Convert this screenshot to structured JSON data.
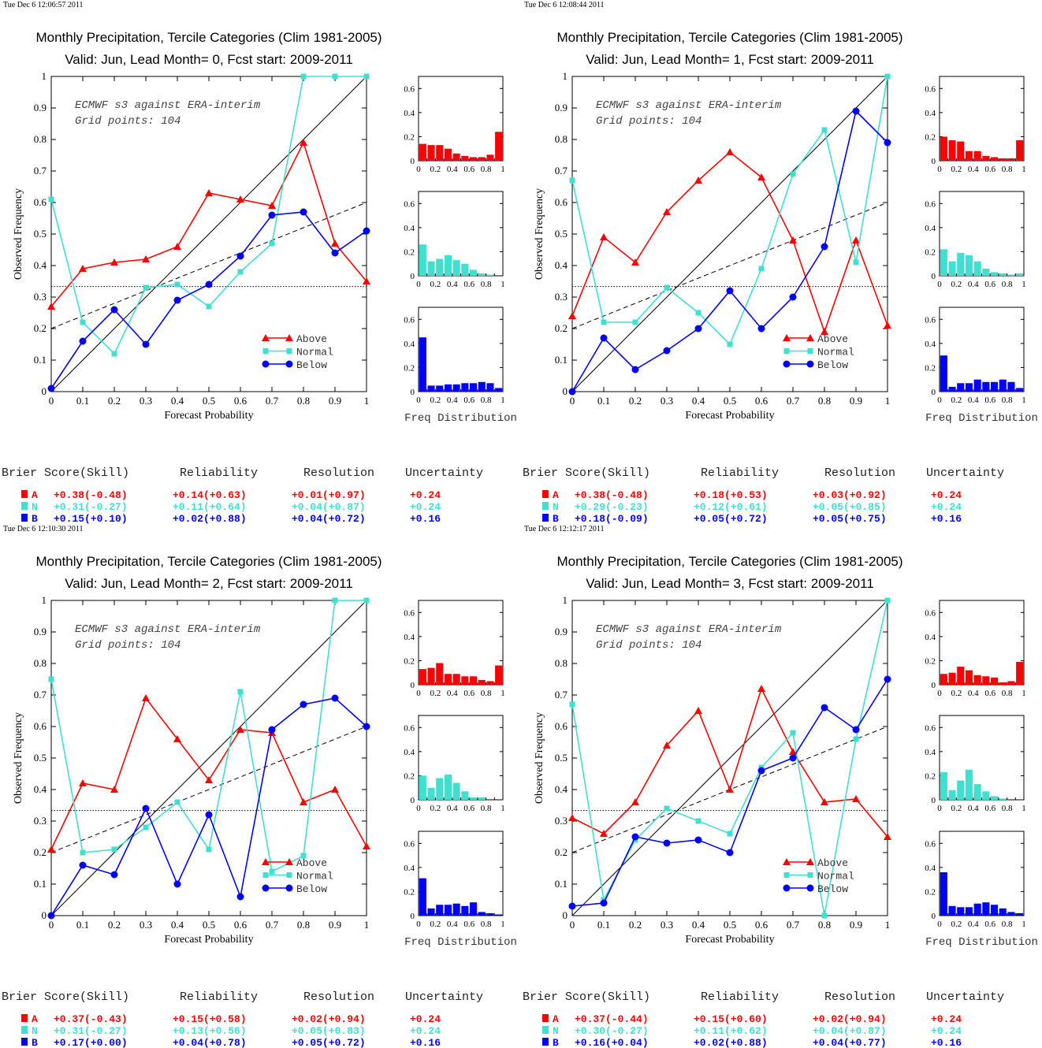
{
  "colors": {
    "above": "#ff0000",
    "normal": "#40e0d0",
    "below": "#0000ff",
    "axis": "#000000"
  },
  "chart_data": [
    {
      "type": "line",
      "timestamp": "Tue Dec  6 12:06:57 2011",
      "title": "Monthly Precipitation, Tercile Categories (Clim 1981-2005)",
      "subtitle": "Valid: Jun, Lead Month= 0, Fcst start: 2009-2011",
      "annotation": [
        "ECMWF s3 against ERA-interim",
        "Grid points:  104"
      ],
      "xlabel": "Forecast Probability",
      "ylabel": "Observed Frequency",
      "xlim": [
        0,
        1
      ],
      "ylim": [
        0,
        1
      ],
      "x": [
        0,
        0.1,
        0.2,
        0.3,
        0.4,
        0.5,
        0.6,
        0.7,
        0.8,
        0.9,
        1
      ],
      "series": [
        {
          "name": "Above",
          "values": [
            0.27,
            0.39,
            0.41,
            0.42,
            0.46,
            0.63,
            0.61,
            0.59,
            0.79,
            0.47,
            0.35
          ]
        },
        {
          "name": "Normal",
          "values": [
            0.61,
            0.22,
            0.12,
            0.33,
            0.34,
            0.27,
            0.38,
            0.47,
            1.0,
            1.0,
            1.0
          ]
        },
        {
          "name": "Below",
          "values": [
            0.01,
            0.16,
            0.26,
            0.15,
            0.29,
            0.34,
            0.43,
            0.56,
            0.57,
            0.44,
            0.51
          ]
        }
      ],
      "freq_distribution": {
        "xlabel": "Freq Distribution",
        "ylim": [
          0,
          0.7
        ],
        "above": [
          0.14,
          0.13,
          0.13,
          0.1,
          0.06,
          0.04,
          0.03,
          0.03,
          0.05,
          0.24
        ],
        "normal": [
          0.26,
          0.12,
          0.14,
          0.17,
          0.13,
          0.1,
          0.05,
          0.02,
          0.01,
          0.0
        ],
        "below": [
          0.45,
          0.05,
          0.05,
          0.06,
          0.06,
          0.07,
          0.07,
          0.08,
          0.07,
          0.03
        ]
      },
      "scores": {
        "headers": [
          "Brier Score(Skill)",
          "Reliability",
          "Resolution",
          "Uncertainty"
        ],
        "rows": [
          {
            "label": "A",
            "brier": "+0.38(-0.48)",
            "reliability": "+0.14(+0.63)",
            "resolution": "+0.01(+0.97)",
            "uncertainty": "+0.24"
          },
          {
            "label": "N",
            "brier": "+0.31(-0.27)",
            "reliability": "+0.11(+0.64)",
            "resolution": "+0.04(+0.87)",
            "uncertainty": "+0.24"
          },
          {
            "label": "B",
            "brier": "+0.15(+0.10)",
            "reliability": "+0.02(+0.88)",
            "resolution": "+0.04(+0.72)",
            "uncertainty": "+0.16"
          }
        ]
      }
    },
    {
      "type": "line",
      "timestamp": "Tue Dec  6 12:08:44 2011",
      "title": "Monthly Precipitation, Tercile Categories (Clim 1981-2005)",
      "subtitle": "Valid: Jun, Lead Month= 1, Fcst start: 2009-2011",
      "annotation": [
        "ECMWF s3 against ERA-interim",
        "Grid points:  104"
      ],
      "xlabel": "Forecast Probability",
      "ylabel": "Observed Frequency",
      "xlim": [
        0,
        1
      ],
      "ylim": [
        0,
        1
      ],
      "x": [
        0,
        0.1,
        0.2,
        0.3,
        0.4,
        0.5,
        0.6,
        0.7,
        0.8,
        0.9,
        1
      ],
      "series": [
        {
          "name": "Above",
          "values": [
            0.24,
            0.49,
            0.41,
            0.57,
            0.67,
            0.76,
            0.68,
            0.48,
            0.19,
            0.48,
            0.21
          ]
        },
        {
          "name": "Normal",
          "values": [
            0.67,
            0.22,
            0.22,
            0.33,
            0.25,
            0.15,
            0.39,
            0.69,
            0.83,
            0.41,
            1.0
          ]
        },
        {
          "name": "Below",
          "values": [
            0.0,
            0.17,
            0.07,
            0.13,
            0.2,
            0.32,
            0.2,
            0.3,
            0.46,
            0.89,
            0.79
          ]
        }
      ],
      "freq_distribution": {
        "xlabel": "Freq Distribution",
        "ylim": [
          0,
          0.7
        ],
        "above": [
          0.2,
          0.17,
          0.16,
          0.08,
          0.08,
          0.04,
          0.03,
          0.02,
          0.02,
          0.17
        ],
        "normal": [
          0.22,
          0.12,
          0.19,
          0.17,
          0.12,
          0.06,
          0.03,
          0.02,
          0.01,
          0.02
        ],
        "below": [
          0.3,
          0.04,
          0.07,
          0.07,
          0.1,
          0.08,
          0.08,
          0.1,
          0.08,
          0.03
        ]
      },
      "scores": {
        "headers": [
          "Brier Score(Skill)",
          "Reliability",
          "Resolution",
          "Uncertainty"
        ],
        "rows": [
          {
            "label": "A",
            "brier": "+0.38(-0.48)",
            "reliability": "+0.18(+0.53)",
            "resolution": "+0.03(+0.92)",
            "uncertainty": "+0.24"
          },
          {
            "label": "N",
            "brier": "+0.29(-0.23)",
            "reliability": "+0.12(+0.61)",
            "resolution": "+0.05(+0.85)",
            "uncertainty": "+0.24"
          },
          {
            "label": "B",
            "brier": "+0.18(-0.09)",
            "reliability": "+0.05(+0.72)",
            "resolution": "+0.05(+0.75)",
            "uncertainty": "+0.16"
          }
        ]
      }
    },
    {
      "type": "line",
      "timestamp": "Tue Dec  6 12:10:30 2011",
      "title": "Monthly Precipitation, Tercile Categories (Clim 1981-2005)",
      "subtitle": "Valid: Jun, Lead Month= 2, Fcst start: 2009-2011",
      "annotation": [
        "ECMWF s3 against ERA-interim",
        "Grid points:  104"
      ],
      "xlabel": "Forecast Probability",
      "ylabel": "Observed Frequency",
      "xlim": [
        0,
        1
      ],
      "ylim": [
        0,
        1
      ],
      "x": [
        0,
        0.1,
        0.2,
        0.3,
        0.4,
        0.5,
        0.6,
        0.7,
        0.8,
        0.9,
        1
      ],
      "series": [
        {
          "name": "Above",
          "values": [
            0.21,
            0.42,
            0.4,
            0.69,
            0.56,
            0.43,
            0.59,
            0.58,
            0.36,
            0.4,
            0.22
          ]
        },
        {
          "name": "Normal",
          "values": [
            0.75,
            0.2,
            0.21,
            0.28,
            0.36,
            0.21,
            0.71,
            0.14,
            0.19,
            1.0,
            1.0
          ]
        },
        {
          "name": "Below",
          "values": [
            0.0,
            0.16,
            0.13,
            0.34,
            0.1,
            0.32,
            0.06,
            0.59,
            0.67,
            0.69,
            0.6
          ]
        }
      ],
      "freq_distribution": {
        "xlabel": "Freq Distribution",
        "ylim": [
          0,
          0.7
        ],
        "above": [
          0.13,
          0.14,
          0.18,
          0.09,
          0.09,
          0.07,
          0.07,
          0.04,
          0.03,
          0.16
        ],
        "normal": [
          0.2,
          0.1,
          0.18,
          0.21,
          0.14,
          0.07,
          0.02,
          0.02,
          0.0,
          0.0
        ],
        "below": [
          0.31,
          0.06,
          0.09,
          0.09,
          0.1,
          0.08,
          0.11,
          0.03,
          0.02,
          0.01
        ]
      },
      "scores": {
        "headers": [
          "Brier Score(Skill)",
          "Reliability",
          "Resolution",
          "Uncertainty"
        ],
        "rows": [
          {
            "label": "A",
            "brier": "+0.37(-0.43)",
            "reliability": "+0.15(+0.58)",
            "resolution": "+0.02(+0.94)",
            "uncertainty": "+0.24"
          },
          {
            "label": "N",
            "brier": "+0.31(-0.27)",
            "reliability": "+0.13(+0.56)",
            "resolution": "+0.05(+0.83)",
            "uncertainty": "+0.24"
          },
          {
            "label": "B",
            "brier": "+0.17(+0.00)",
            "reliability": "+0.04(+0.78)",
            "resolution": "+0.05(+0.72)",
            "uncertainty": "+0.16"
          }
        ]
      }
    },
    {
      "type": "line",
      "timestamp": "Tue Dec  6 12:12:17 2011",
      "title": "Monthly Precipitation, Tercile Categories (Clim 1981-2005)",
      "subtitle": "Valid: Jun, Lead Month= 3, Fcst start: 2009-2011",
      "annotation": [
        "ECMWF s3 against ERA-interim",
        "Grid points:  104"
      ],
      "xlabel": "Forecast Probability",
      "ylabel": "Observed Frequency",
      "xlim": [
        0,
        1
      ],
      "ylim": [
        0,
        1
      ],
      "x": [
        0,
        0.1,
        0.2,
        0.3,
        0.4,
        0.5,
        0.6,
        0.7,
        0.8,
        0.9,
        1
      ],
      "series": [
        {
          "name": "Above",
          "values": [
            0.31,
            0.26,
            0.36,
            0.54,
            0.65,
            0.4,
            0.72,
            0.52,
            0.36,
            0.37,
            0.25
          ]
        },
        {
          "name": "Normal",
          "values": [
            0.67,
            0.05,
            0.24,
            0.34,
            0.3,
            0.26,
            0.47,
            0.58,
            0.0,
            0.56,
            1.0
          ]
        },
        {
          "name": "Below",
          "values": [
            0.03,
            0.04,
            0.25,
            0.23,
            0.24,
            0.2,
            0.46,
            0.5,
            0.66,
            0.59,
            0.75
          ]
        }
      ],
      "freq_distribution": {
        "xlabel": "Freq Distribution",
        "ylim": [
          0,
          0.7
        ],
        "above": [
          0.09,
          0.1,
          0.15,
          0.12,
          0.08,
          0.07,
          0.06,
          0.02,
          0.03,
          0.19
        ],
        "normal": [
          0.23,
          0.08,
          0.16,
          0.25,
          0.13,
          0.07,
          0.03,
          0.01,
          0.0,
          0.0
        ],
        "below": [
          0.36,
          0.08,
          0.07,
          0.07,
          0.1,
          0.11,
          0.09,
          0.06,
          0.03,
          0.02
        ]
      },
      "scores": {
        "headers": [
          "Brier Score(Skill)",
          "Reliability",
          "Resolution",
          "Uncertainty"
        ],
        "rows": [
          {
            "label": "A",
            "brier": "+0.37(-0.44)",
            "reliability": "+0.15(+0.60)",
            "resolution": "+0.02(+0.94)",
            "uncertainty": "+0.24"
          },
          {
            "label": "N",
            "brier": "+0.30(-0.27)",
            "reliability": "+0.11(+0.62)",
            "resolution": "+0.04(+0.87)",
            "uncertainty": "+0.24"
          },
          {
            "label": "B",
            "brier": "+0.16(+0.04)",
            "reliability": "+0.02(+0.88)",
            "resolution": "+0.04(+0.77)",
            "uncertainty": "+0.16"
          }
        ]
      }
    }
  ]
}
